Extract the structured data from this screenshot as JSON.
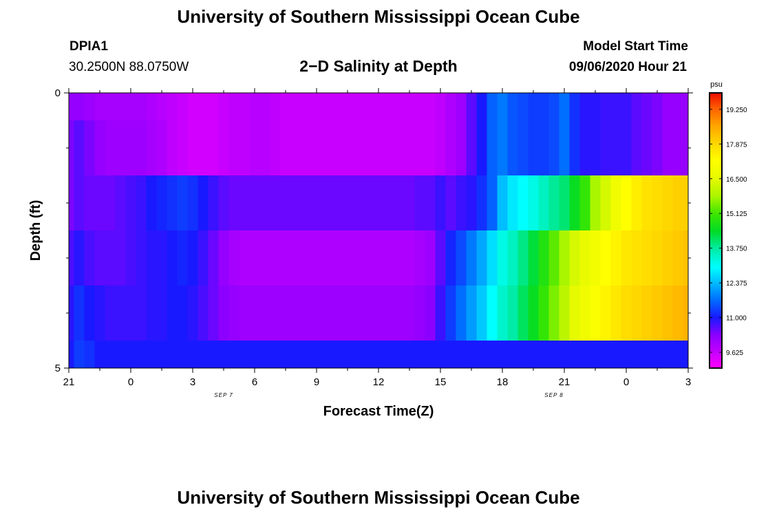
{
  "page": {
    "title_top": "University of Southern Mississippi Ocean Cube",
    "title_bottom": "University of Southern Mississippi Ocean Cube",
    "station_id": "DPIA1",
    "station_coords": "30.2500N 88.0750W",
    "chart_title": "2−D Salinity at Depth",
    "model_label": "Model Start Time",
    "model_time": "09/06/2020 Hour 21"
  },
  "chart_data": {
    "type": "heatmap",
    "title": "2−D Salinity at Depth",
    "xlabel": "Forecast Time(Z)",
    "ylabel": "Depth (ft)",
    "x_unit": "hours since model start",
    "xlim": [
      0,
      30
    ],
    "ylim": [
      0,
      5
    ],
    "x_ticks": [
      0,
      3,
      6,
      9,
      12,
      15,
      18,
      21,
      24,
      27,
      30
    ],
    "x_tick_labels": [
      "21",
      "0",
      "3",
      "6",
      "9",
      "12",
      "15",
      "18",
      "21",
      "0",
      "3"
    ],
    "x_minor_ticks": [
      1.5,
      4.5,
      7.5,
      10.5,
      13.5,
      16.5,
      19.5,
      22.5,
      25.5,
      28.5
    ],
    "y_ticks": [
      0,
      5
    ],
    "y_tick_labels": [
      "0",
      "5"
    ],
    "y_minor_ticks": [
      1,
      2,
      3,
      4
    ],
    "date_labels": [
      {
        "x": 7.5,
        "text": "SEP 7"
      },
      {
        "x": 23.5,
        "text": "SEP 8"
      }
    ],
    "depth_levels": [
      0.25,
      1,
      2,
      3,
      4,
      4.75
    ],
    "depth_edges": [
      0,
      0.5,
      1.5,
      2.5,
      3.5,
      4.5,
      5
    ],
    "time_knots": [
      0,
      0.5,
      1,
      1.5,
      2,
      2.5,
      3,
      3.5,
      4,
      4.5,
      5,
      5.5,
      6,
      6.5,
      7,
      7.5,
      8,
      8.5,
      9,
      9.5,
      10,
      10.5,
      11,
      11.5,
      12,
      12.5,
      13,
      13.5,
      14,
      14.5,
      15,
      15.5,
      16,
      16.5,
      17,
      17.5,
      18,
      18.5,
      19,
      19.5,
      20,
      20.5,
      21,
      21.5,
      22,
      22.5,
      23,
      23.5,
      24,
      24.5,
      25,
      25.5,
      26,
      26.5,
      27,
      27.5,
      28,
      28.5,
      29,
      29.5,
      30
    ],
    "salinity_psu": [
      [
        10.2,
        10.2,
        10.1,
        10.0,
        10.0,
        10.0,
        10.0,
        10.0,
        9.9,
        9.8,
        9.7,
        9.6,
        9.5,
        9.5,
        9.5,
        9.6,
        9.7,
        9.7,
        9.8,
        9.8,
        9.7,
        9.6,
        9.6,
        9.6,
        9.6,
        9.6,
        9.6,
        9.6,
        9.6,
        9.6,
        9.6,
        9.6,
        9.6,
        9.6,
        9.6,
        9.6,
        9.7,
        9.9,
        10.1,
        10.6,
        11.0,
        11.6,
        11.8,
        11.5,
        11.4,
        11.3,
        11.3,
        11.4,
        11.7,
        11.2,
        10.9,
        10.9,
        10.8,
        10.8,
        10.8,
        10.6,
        10.5,
        10.4,
        10.2,
        10.2,
        10.2
      ],
      [
        10.4,
        10.6,
        10.4,
        10.2,
        10.1,
        10.1,
        10.1,
        10.1,
        10.0,
        9.9,
        9.7,
        9.6,
        9.5,
        9.5,
        9.5,
        9.6,
        9.7,
        9.7,
        9.8,
        9.8,
        9.7,
        9.6,
        9.6,
        9.6,
        9.6,
        9.6,
        9.6,
        9.6,
        9.6,
        9.6,
        9.6,
        9.6,
        9.6,
        9.6,
        9.6,
        9.6,
        9.7,
        9.9,
        10.1,
        10.6,
        11.0,
        11.6,
        11.8,
        11.5,
        11.4,
        11.3,
        11.3,
        11.4,
        11.7,
        11.2,
        10.9,
        10.9,
        10.8,
        10.8,
        10.8,
        10.6,
        10.5,
        10.4,
        10.2,
        10.2,
        10.2
      ],
      [
        10.4,
        10.6,
        10.5,
        10.5,
        10.5,
        10.6,
        10.7,
        10.8,
        11.0,
        11.1,
        11.2,
        11.3,
        11.2,
        11.0,
        10.8,
        10.6,
        10.5,
        10.5,
        10.5,
        10.5,
        10.5,
        10.5,
        10.5,
        10.5,
        10.5,
        10.5,
        10.5,
        10.5,
        10.5,
        10.5,
        10.5,
        10.5,
        10.5,
        10.5,
        10.6,
        10.6,
        10.8,
        10.6,
        10.8,
        10.9,
        11.2,
        11.6,
        12.4,
        12.8,
        13.0,
        13.2,
        13.5,
        13.8,
        14.0,
        14.5,
        15.0,
        15.8,
        16.3,
        16.8,
        17.2,
        17.5,
        17.7,
        17.8,
        17.9,
        18.0,
        18.0
      ],
      [
        10.7,
        10.9,
        10.7,
        10.6,
        10.6,
        10.6,
        10.7,
        10.8,
        10.9,
        10.9,
        11.0,
        11.1,
        11.0,
        10.8,
        10.5,
        10.2,
        10.0,
        9.9,
        9.9,
        9.9,
        9.9,
        9.9,
        9.9,
        9.9,
        9.9,
        9.9,
        9.9,
        9.9,
        9.9,
        9.9,
        9.9,
        9.9,
        9.9,
        9.9,
        10.0,
        10.1,
        10.6,
        11.1,
        11.4,
        11.8,
        12.2,
        12.7,
        13.2,
        13.5,
        13.9,
        14.3,
        14.8,
        15.3,
        15.8,
        16.3,
        16.6,
        16.9,
        17.2,
        17.4,
        17.6,
        17.7,
        17.8,
        17.9,
        18.0,
        18.1,
        18.2
      ],
      [
        10.9,
        11.2,
        11.0,
        10.9,
        10.8,
        10.8,
        10.8,
        10.8,
        10.9,
        10.9,
        11.0,
        11.0,
        10.9,
        10.7,
        10.5,
        10.3,
        10.2,
        10.1,
        10.1,
        10.1,
        10.1,
        10.1,
        10.1,
        10.1,
        10.1,
        10.1,
        10.1,
        10.1,
        10.1,
        10.1,
        10.1,
        10.1,
        10.1,
        10.1,
        10.2,
        10.3,
        10.8,
        11.3,
        11.7,
        12.1,
        12.5,
        13.0,
        13.4,
        13.7,
        14.1,
        14.5,
        15.0,
        15.5,
        16.0,
        16.5,
        16.8,
        17.1,
        17.4,
        17.6,
        17.8,
        17.9,
        18.0,
        18.1,
        18.2,
        18.3,
        18.4
      ],
      [
        11.0,
        11.3,
        11.2,
        11.0,
        11.0,
        11.0,
        11.0,
        11.0,
        11.0,
        11.0,
        11.0,
        11.0,
        11.0,
        11.0,
        11.0,
        11.0,
        11.0,
        11.0,
        11.0,
        11.0,
        11.0,
        11.0,
        11.0,
        11.0,
        11.0,
        11.0,
        11.0,
        11.0,
        11.0,
        11.0,
        11.0,
        11.0,
        11.0,
        11.0,
        11.0,
        11.0,
        11.0,
        11.0,
        11.0,
        11.0,
        11.0,
        11.0,
        11.0,
        11.0,
        11.0,
        11.0,
        11.0,
        11.0,
        11.0,
        11.0,
        11.0,
        11.0,
        11.0,
        11.0,
        11.0,
        11.0,
        11.0,
        11.0,
        11.0,
        11.0,
        11.0
      ]
    ],
    "colorbar": {
      "unit": "psu",
      "min": 9.0,
      "max": 19.9,
      "ticks": [
        9.625,
        11.0,
        12.375,
        13.75,
        15.125,
        16.5,
        17.875,
        19.25
      ],
      "tick_labels": [
        "9.625",
        "11.000",
        "12.375",
        "13.750",
        "15.125",
        "16.500",
        "17.875",
        "19.250"
      ]
    }
  }
}
